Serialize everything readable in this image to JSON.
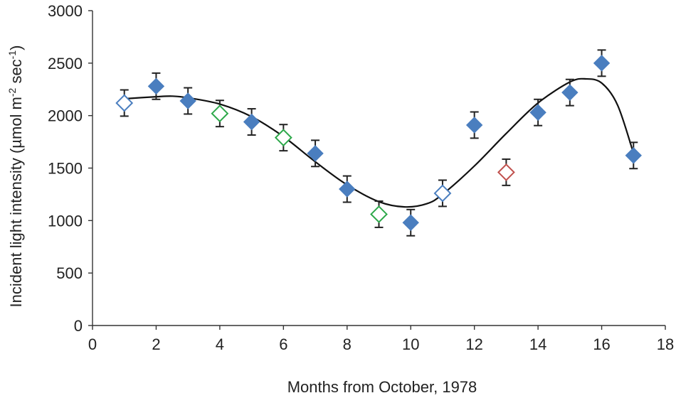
{
  "chart_data": {
    "type": "scatter",
    "title": "",
    "xlabel": "Months from October, 1978",
    "ylabel_parts": {
      "main": "Incident light intensity (µmol m",
      "sup1": "-2",
      "mid": " sec",
      "sup2": "-1",
      "end": ")"
    },
    "xlim": [
      0,
      18
    ],
    "ylim": [
      0,
      3000
    ],
    "xticks": [
      "0",
      "2",
      "4",
      "6",
      "8",
      "10",
      "12",
      "14",
      "16",
      "18"
    ],
    "yticks": [
      "0",
      "500",
      "1000",
      "1500",
      "2000",
      "2500",
      "3000"
    ],
    "grid": false,
    "legend": "none",
    "error_bar": 125,
    "points": [
      {
        "x": 1,
        "y": 2120,
        "style": "open-blue"
      },
      {
        "x": 2,
        "y": 2280,
        "style": "filled"
      },
      {
        "x": 3,
        "y": 2140,
        "style": "filled"
      },
      {
        "x": 4,
        "y": 2020,
        "style": "open-green"
      },
      {
        "x": 5,
        "y": 1940,
        "style": "filled"
      },
      {
        "x": 6,
        "y": 1790,
        "style": "open-green"
      },
      {
        "x": 7,
        "y": 1640,
        "style": "filled"
      },
      {
        "x": 8,
        "y": 1300,
        "style": "filled"
      },
      {
        "x": 9,
        "y": 1060,
        "style": "open-green"
      },
      {
        "x": 10,
        "y": 980,
        "style": "filled"
      },
      {
        "x": 11,
        "y": 1260,
        "style": "open-blue"
      },
      {
        "x": 12,
        "y": 1910,
        "style": "filled"
      },
      {
        "x": 13,
        "y": 1460,
        "style": "open-red"
      },
      {
        "x": 14,
        "y": 2030,
        "style": "filled"
      },
      {
        "x": 15,
        "y": 2220,
        "style": "filled"
      },
      {
        "x": 16,
        "y": 2500,
        "style": "filled"
      },
      {
        "x": 17,
        "y": 1620,
        "style": "filled"
      }
    ],
    "fit_curve": {
      "x": [
        1,
        2,
        2.5,
        3,
        4,
        5,
        6,
        7,
        8,
        9,
        9.8,
        10.5,
        11,
        12,
        13,
        14,
        15,
        15.5,
        16,
        16.5,
        17
      ],
      "y": [
        2160,
        2180,
        2185,
        2170,
        2110,
        1990,
        1800,
        1560,
        1340,
        1180,
        1130,
        1160,
        1250,
        1520,
        1830,
        2120,
        2320,
        2350,
        2310,
        2100,
        1640
      ]
    },
    "colors": {
      "filled": "#4a7ebf",
      "open-blue": "#4a7ebf",
      "open-green": "#2da84a",
      "open-red": "#c0504d",
      "curve": "#111111",
      "error": "#222222"
    }
  }
}
